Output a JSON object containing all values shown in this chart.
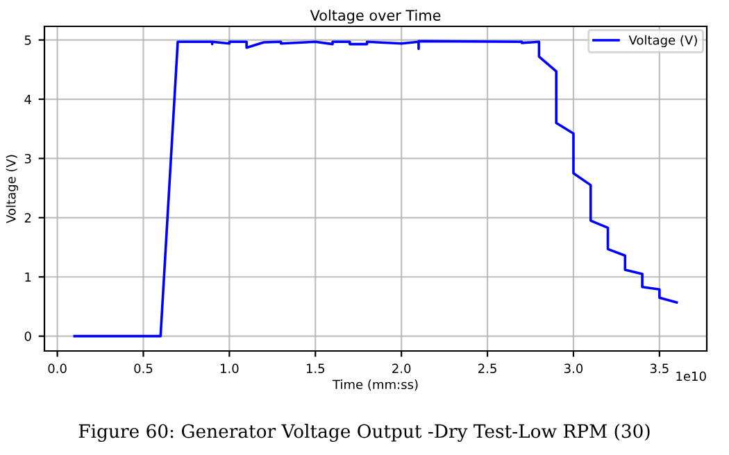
{
  "chart_data": {
    "type": "line",
    "title": "Voltage over Time",
    "xlabel": "Time (mm:ss)",
    "ylabel": "Voltage (V)",
    "series": [
      {
        "name": "Voltage (V)",
        "color": "#0000ff",
        "x": [
          0.1,
          0.6,
          0.7,
          0.9,
          0.9,
          0.9,
          1.0,
          1.0,
          1.1,
          1.1,
          1.2,
          1.3,
          1.3,
          1.5,
          1.6,
          1.6,
          1.7,
          1.7,
          1.8,
          1.8,
          2.0,
          2.1,
          2.1,
          2.1,
          2.7,
          2.7,
          2.8,
          2.8,
          2.9,
          2.9,
          3.0,
          3.0,
          3.1,
          3.1,
          3.2,
          3.2,
          3.3,
          3.3,
          3.4,
          3.4,
          3.5,
          3.5,
          3.6
        ],
        "values": [
          0.0,
          0.0,
          4.97,
          4.97,
          4.93,
          4.97,
          4.94,
          4.97,
          4.97,
          4.87,
          4.96,
          4.97,
          4.94,
          4.97,
          4.93,
          4.97,
          4.97,
          4.93,
          4.93,
          4.97,
          4.94,
          4.97,
          4.85,
          4.98,
          4.97,
          4.95,
          4.97,
          4.72,
          4.47,
          3.6,
          3.42,
          2.75,
          2.55,
          1.95,
          1.83,
          1.47,
          1.36,
          1.12,
          1.05,
          0.83,
          0.79,
          0.65,
          0.57
        ]
      }
    ],
    "xlim": [
      -0.075,
      3.775
    ],
    "ylim": [
      -0.25,
      5.23
    ],
    "xticks": [
      {
        "value": 0,
        "label": "0.0"
      },
      {
        "value": 0.5,
        "label": "0.5"
      },
      {
        "value": 1,
        "label": "1.0"
      },
      {
        "value": 1.5,
        "label": "1.5"
      },
      {
        "value": 2,
        "label": "2.0"
      },
      {
        "value": 2.5,
        "label": "2.5"
      },
      {
        "value": 3,
        "label": "3.0"
      },
      {
        "value": 3.5,
        "label": "3.5"
      }
    ],
    "yticks": [
      0,
      1,
      2,
      3,
      4,
      5
    ],
    "grid": true,
    "legend": "top right",
    "marker": "none",
    "line_style": "solid",
    "annotations": [
      "1e10",
      "Figure 60: Generator Voltage Output -Dry Test-Low RPM (30)"
    ]
  }
}
